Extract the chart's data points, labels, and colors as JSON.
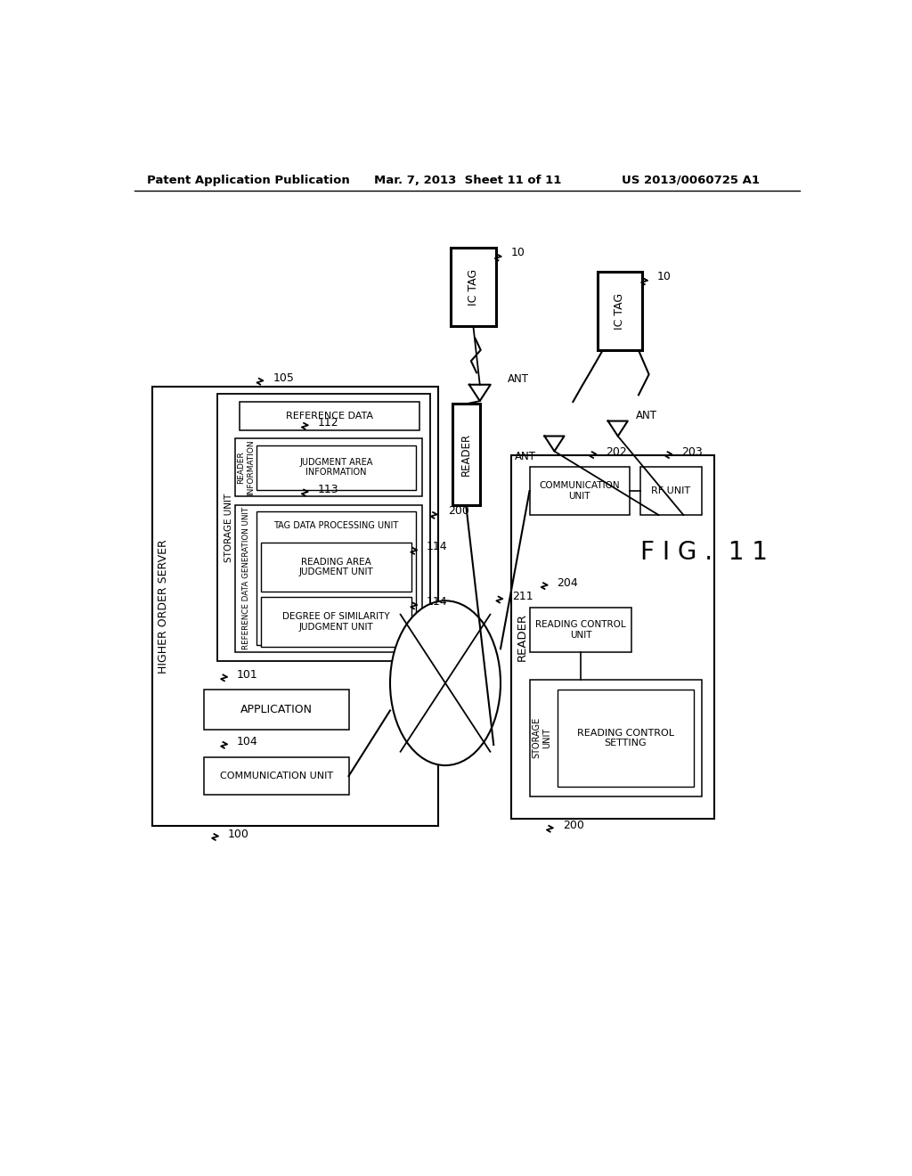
{
  "title_left": "Patent Application Publication",
  "title_mid": "Mar. 7, 2013  Sheet 11 of 11",
  "title_right": "US 2013/0060725 A1",
  "fig_label": "F I G . 1 1",
  "background": "#ffffff"
}
